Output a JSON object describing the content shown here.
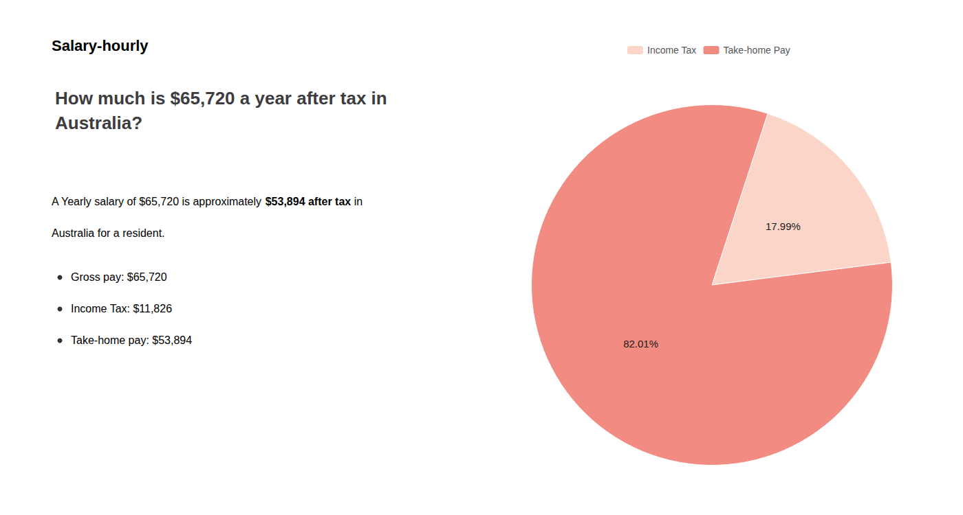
{
  "chart_data": {
    "type": "pie",
    "title": "How much is $65,720 a year after tax in\nAustralia?",
    "categories": [
      "Income Tax",
      "Take-home Pay"
    ],
    "values": [
      17.99,
      82.01
    ],
    "value_labels": [
      "17.99%",
      "82.01%"
    ],
    "colors": [
      "#fad5c8",
      "#f28b82"
    ],
    "data_labels": true,
    "legend": "top",
    "annotations": [
      {
        "segments": [
          {
            "text": "S",
            "color": "#c0392b"
          },
          {
            "text": "alary-hourly"
          }
        ]
      },
      {
        "segments": [
          {
            "text": "A Yearly salary of $65,720 is approximately "
          },
          {
            "text": "$53,894 after tax",
            "color": "#c0392b"
          },
          {
            "text": " in"
          }
        ]
      },
      {
        "segments": [
          {
            "text": "Australia for a resident."
          }
        ]
      },
      {
        "segments": [
          {
            "text": "Gross pay: $65,720"
          }
        ],
        "marker": "bullet"
      },
      {
        "segments": [
          {
            "text": "Income Tax: $11,826"
          }
        ],
        "marker": "bullet"
      },
      {
        "segments": [
          {
            "text": "Take-home pay: $53,894"
          }
        ],
        "marker": "bullet"
      }
    ]
  }
}
